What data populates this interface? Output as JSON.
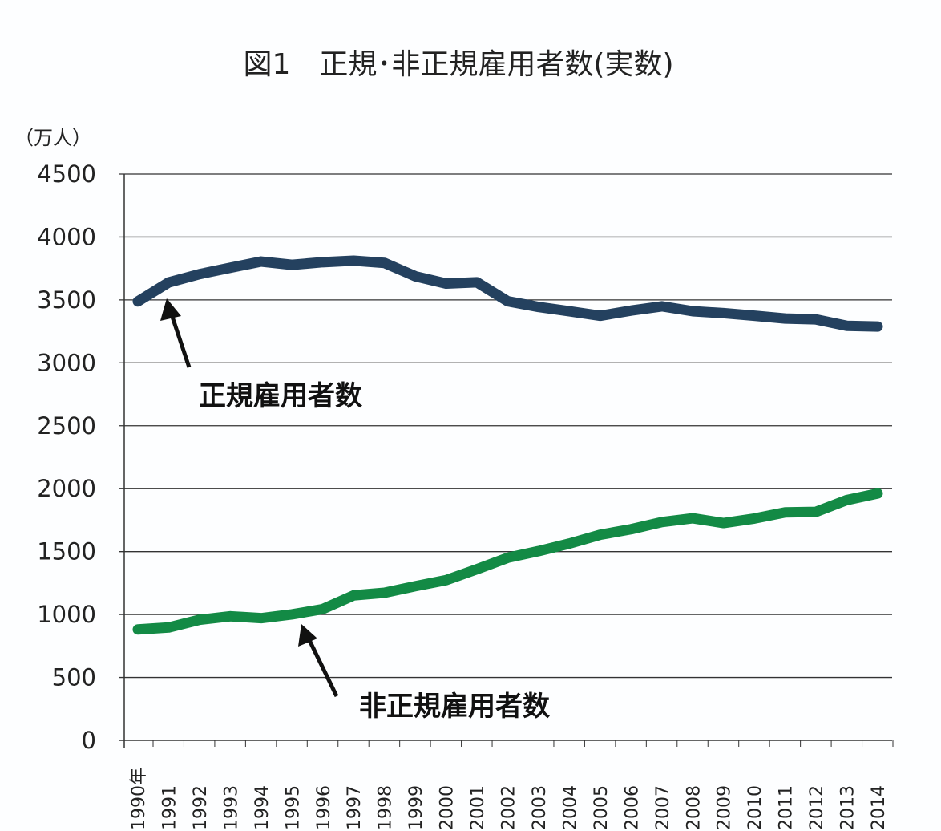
{
  "chart_data": {
    "type": "line",
    "title": "図1　正規･非正規雇用者数(実数)",
    "ylabel": "（万人）",
    "xlabel": "",
    "ylim": [
      0,
      4500
    ],
    "yticks": [
      "0",
      "500",
      "1000",
      "1500",
      "2000",
      "2500",
      "3000",
      "3500",
      "4000",
      "4500"
    ],
    "grid": true,
    "x": [
      "1990年",
      "1991",
      "1992",
      "1993",
      "1994",
      "1995",
      "1996",
      "1997",
      "1998",
      "1999",
      "2000",
      "2001",
      "2002",
      "2003",
      "2004",
      "2005",
      "2006",
      "2007",
      "2008",
      "2009",
      "2010",
      "2011",
      "2012",
      "2013",
      "2014"
    ],
    "series": [
      {
        "name": "正規雇用者数",
        "color": "#24415f",
        "values": [
          3488,
          3639,
          3705,
          3756,
          3805,
          3779,
          3800,
          3812,
          3794,
          3688,
          3630,
          3640,
          3489,
          3444,
          3410,
          3374,
          3415,
          3449,
          3410,
          3395,
          3374,
          3352,
          3345,
          3294,
          3288
        ]
      },
      {
        "name": "非正規雇用者数",
        "color": "#138a45",
        "values": [
          881,
          897,
          958,
          986,
          971,
          1001,
          1043,
          1152,
          1173,
          1225,
          1273,
          1360,
          1451,
          1504,
          1564,
          1634,
          1678,
          1735,
          1765,
          1727,
          1763,
          1812,
          1816,
          1910,
          1962
        ]
      }
    ]
  }
}
